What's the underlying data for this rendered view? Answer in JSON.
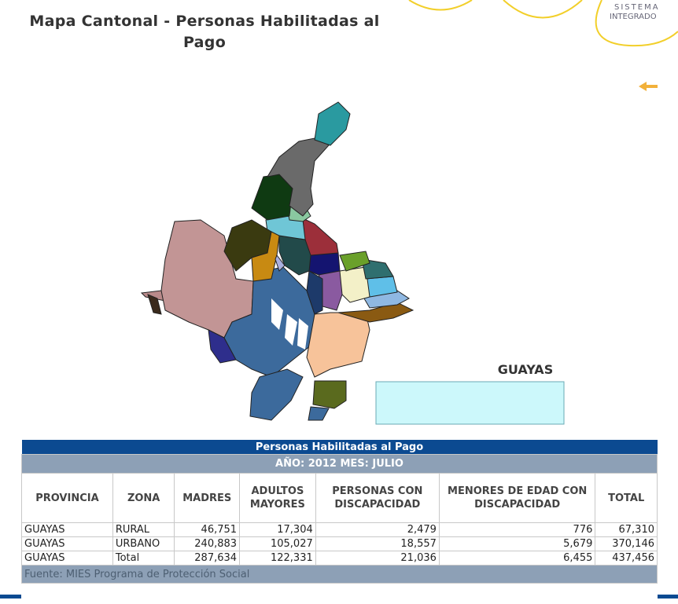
{
  "header": {
    "title": "Mapa Cantonal - Personas Habilitadas al Pago",
    "logo_line1": "SISTEMA",
    "logo_line2": "INTEGRADO"
  },
  "map": {
    "label": "GUAYAS"
  },
  "table": {
    "title": "Personas Habilitadas al Pago",
    "subtitle": "AÑO: 2012 MES: JULIO",
    "columns": [
      "PROVINCIA",
      "ZONA",
      "MADRES",
      "ADULTOS MAYORES",
      "PERSONAS CON DISCAPACIDAD",
      "MENORES DE EDAD CON DISCAPACIDAD",
      "TOTAL"
    ],
    "rows": [
      [
        "GUAYAS",
        "RURAL",
        "46,751",
        "17,304",
        "2,479",
        "776",
        "67,310"
      ],
      [
        "GUAYAS",
        "URBANO",
        "240,883",
        "105,027",
        "18,557",
        "5,679",
        "370,146"
      ],
      [
        "GUAYAS",
        "Total",
        "287,634",
        "122,331",
        "21,036",
        "6,455",
        "437,456"
      ]
    ],
    "footer": "Fuente: MIES Programa de Protección Social"
  }
}
